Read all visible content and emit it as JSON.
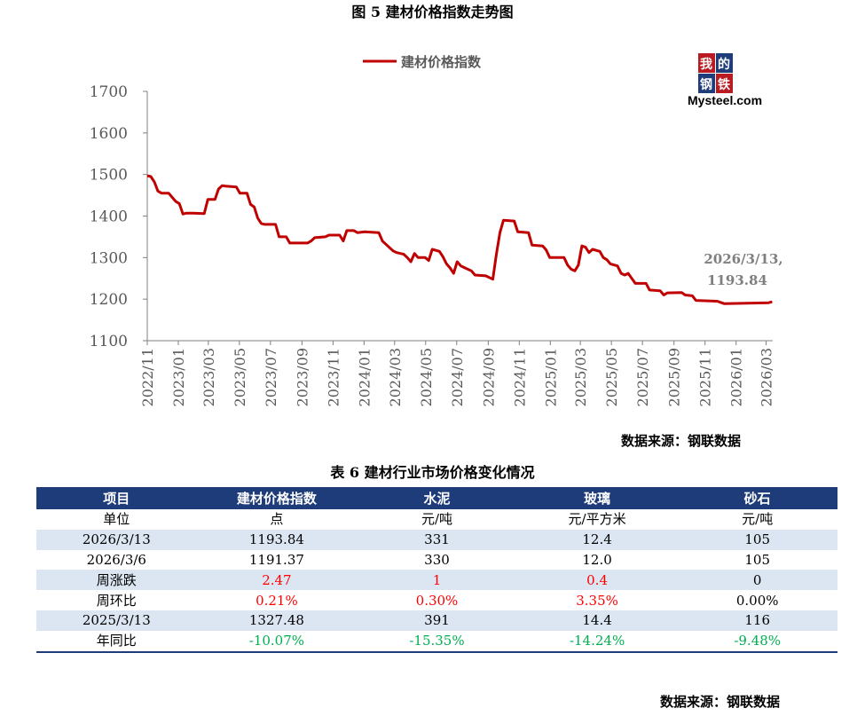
{
  "figure_title": "图 5  建材价格指数走势图",
  "logo": {
    "cn": [
      "我",
      "的",
      "钢",
      "铁"
    ],
    "en": "Mysteel.com"
  },
  "chart_data": {
    "type": "line",
    "title": "",
    "legend": [
      "建材价格指数"
    ],
    "legend_placement": "top",
    "ylim": [
      1100,
      1700
    ],
    "yticks": [
      1100,
      1200,
      1300,
      1400,
      1500,
      1600,
      1700
    ],
    "xticks": [
      "2022/11",
      "2023/01",
      "2023/03",
      "2023/05",
      "2023/07",
      "2023/09",
      "2023/11",
      "2024/01",
      "2024/03",
      "2024/05",
      "2024/07",
      "2024/09",
      "2024/11",
      "2025/01",
      "2025/03",
      "2025/05",
      "2025/07",
      "2025/09",
      "2025/11",
      "2026/01",
      "2026/03"
    ],
    "series_color": "#C00000",
    "annotation": {
      "line1": "2026/3/13,",
      "line2": "1193.84"
    },
    "series": [
      {
        "name": "建材价格指数",
        "points": [
          [
            "2022-11-01",
            1497
          ],
          [
            "2022-11-08",
            1495
          ],
          [
            "2022-11-15",
            1482
          ],
          [
            "2022-11-22",
            1460
          ],
          [
            "2022-11-29",
            1455
          ],
          [
            "2022-12-13",
            1455
          ],
          [
            "2022-12-27",
            1435
          ],
          [
            "2023-01-03",
            1430
          ],
          [
            "2023-01-10",
            1405
          ],
          [
            "2023-01-17",
            1407
          ],
          [
            "2023-01-31",
            1407
          ],
          [
            "2023-02-21",
            1406
          ],
          [
            "2023-02-28",
            1440
          ],
          [
            "2023-03-14",
            1440
          ],
          [
            "2023-03-21",
            1465
          ],
          [
            "2023-03-28",
            1473
          ],
          [
            "2023-04-04",
            1472
          ],
          [
            "2023-04-25",
            1470
          ],
          [
            "2023-05-02",
            1455
          ],
          [
            "2023-05-16",
            1455
          ],
          [
            "2023-05-23",
            1428
          ],
          [
            "2023-05-30",
            1422
          ],
          [
            "2023-06-06",
            1395
          ],
          [
            "2023-06-13",
            1382
          ],
          [
            "2023-06-20",
            1380
          ],
          [
            "2023-07-11",
            1380
          ],
          [
            "2023-07-18",
            1350
          ],
          [
            "2023-08-01",
            1350
          ],
          [
            "2023-08-08",
            1335
          ],
          [
            "2023-08-15",
            1335
          ],
          [
            "2023-09-12",
            1335
          ],
          [
            "2023-09-19",
            1340
          ],
          [
            "2023-09-26",
            1348
          ],
          [
            "2023-10-17",
            1350
          ],
          [
            "2023-10-24",
            1354
          ],
          [
            "2023-11-14",
            1354
          ],
          [
            "2023-11-21",
            1340
          ],
          [
            "2023-11-28",
            1365
          ],
          [
            "2023-12-12",
            1365
          ],
          [
            "2023-12-19",
            1360
          ],
          [
            "2024-01-02",
            1362
          ],
          [
            "2024-01-30",
            1360
          ],
          [
            "2024-02-06",
            1340
          ],
          [
            "2024-02-13",
            1332
          ],
          [
            "2024-02-27",
            1316
          ],
          [
            "2024-03-05",
            1312
          ],
          [
            "2024-03-19",
            1308
          ],
          [
            "2024-03-26",
            1300
          ],
          [
            "2024-04-02",
            1290
          ],
          [
            "2024-04-09",
            1310
          ],
          [
            "2024-04-16",
            1300
          ],
          [
            "2024-04-30",
            1300
          ],
          [
            "2024-05-07",
            1293
          ],
          [
            "2024-05-14",
            1320
          ],
          [
            "2024-05-28",
            1315
          ],
          [
            "2024-06-04",
            1302
          ],
          [
            "2024-06-11",
            1285
          ],
          [
            "2024-06-18",
            1275
          ],
          [
            "2024-06-25",
            1262
          ],
          [
            "2024-07-02",
            1290
          ],
          [
            "2024-07-09",
            1280
          ],
          [
            "2024-07-16",
            1276
          ],
          [
            "2024-07-30",
            1268
          ],
          [
            "2024-08-06",
            1258
          ],
          [
            "2024-08-27",
            1256
          ],
          [
            "2024-09-10",
            1248
          ],
          [
            "2024-09-17",
            1308
          ],
          [
            "2024-09-24",
            1360
          ],
          [
            "2024-10-01",
            1390
          ],
          [
            "2024-10-22",
            1388
          ],
          [
            "2024-10-29",
            1362
          ],
          [
            "2024-11-19",
            1360
          ],
          [
            "2024-11-26",
            1330
          ],
          [
            "2024-12-17",
            1328
          ],
          [
            "2024-12-24",
            1318
          ],
          [
            "2024-12-31",
            1300
          ],
          [
            "2025-01-28",
            1300
          ],
          [
            "2025-02-04",
            1282
          ],
          [
            "2025-02-11",
            1272
          ],
          [
            "2025-02-18",
            1268
          ],
          [
            "2025-02-25",
            1282
          ],
          [
            "2025-03-04",
            1328
          ],
          [
            "2025-03-11",
            1325
          ],
          [
            "2025-03-18",
            1312
          ],
          [
            "2025-03-25",
            1320
          ],
          [
            "2025-04-08",
            1315
          ],
          [
            "2025-04-15",
            1300
          ],
          [
            "2025-04-22",
            1295
          ],
          [
            "2025-04-29",
            1285
          ],
          [
            "2025-05-13",
            1280
          ],
          [
            "2025-05-20",
            1262
          ],
          [
            "2025-05-27",
            1258
          ],
          [
            "2025-06-03",
            1262
          ],
          [
            "2025-06-10",
            1250
          ],
          [
            "2025-06-17",
            1238
          ],
          [
            "2025-07-08",
            1238
          ],
          [
            "2025-07-15",
            1222
          ],
          [
            "2025-08-05",
            1220
          ],
          [
            "2025-08-12",
            1210
          ],
          [
            "2025-08-19",
            1215
          ],
          [
            "2025-09-16",
            1216
          ],
          [
            "2025-09-23",
            1210
          ],
          [
            "2025-10-07",
            1208
          ],
          [
            "2025-10-14",
            1197
          ],
          [
            "2025-11-25",
            1195
          ],
          [
            "2025-12-02",
            1192
          ],
          [
            "2025-12-09",
            1189
          ],
          [
            "2026-02-24",
            1191
          ],
          [
            "2026-03-06",
            1191.37
          ],
          [
            "2026-03-13",
            1193.84
          ]
        ]
      }
    ]
  },
  "table": {
    "title": "表 6 建材行业市场价格变化情况",
    "headers": [
      "项目",
      "建材价格指数",
      "水泥",
      "玻璃",
      "砂石"
    ],
    "rows": [
      {
        "label": "单位",
        "cells": [
          "点",
          "元/吨",
          "元/平方米",
          "元/吨"
        ],
        "shade": false,
        "color": ""
      },
      {
        "label": "2026/3/13",
        "cells": [
          "1193.84",
          "331",
          "12.4",
          "105"
        ],
        "shade": true,
        "color": ""
      },
      {
        "label": "2026/3/6",
        "cells": [
          "1191.37",
          "330",
          "12.0",
          "105"
        ],
        "shade": false,
        "color": ""
      },
      {
        "label": "周涨跌",
        "cells": [
          "2.47",
          "1",
          "0.4",
          "0"
        ],
        "shade": true,
        "color": "red3"
      },
      {
        "label": "周环比",
        "cells": [
          "0.21%",
          "0.30%",
          "3.35%",
          "0.00%"
        ],
        "shade": false,
        "color": "red3"
      },
      {
        "label": "2025/3/13",
        "cells": [
          "1327.48",
          "391",
          "14.4",
          "116"
        ],
        "shade": true,
        "color": ""
      },
      {
        "label": "年同比",
        "cells": [
          "-10.07%",
          "-15.35%",
          "-14.24%",
          "-9.48%"
        ],
        "shade": false,
        "color": "green"
      }
    ],
    "source": "数据来源：钢联数据"
  },
  "chart_source": "数据来源：钢联数据"
}
